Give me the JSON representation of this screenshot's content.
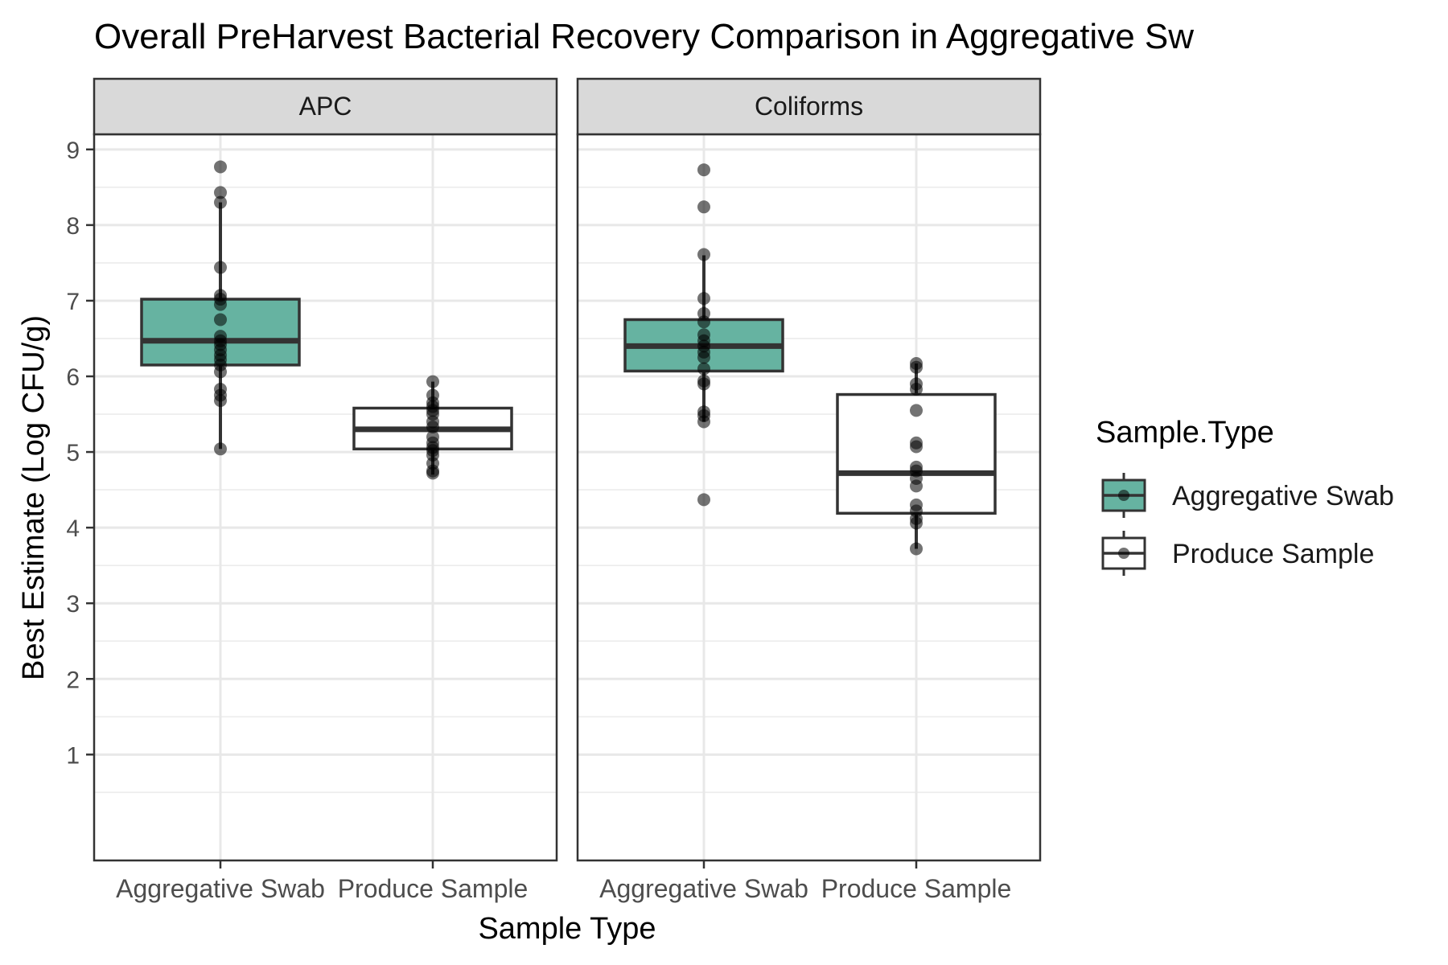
{
  "chart_data": {
    "type": "box",
    "title": "Overall PreHarvest Bacterial Recovery Comparison in Aggregative Sw",
    "xlabel": "Sample Type",
    "ylabel": "Best Estimate (Log CFU/g)",
    "ylim": [
      -0.4,
      9.2
    ],
    "yticks": [
      "1",
      "2",
      "3",
      "4",
      "5",
      "6",
      "7",
      "8",
      "9"
    ],
    "categories": [
      "Aggregative Swab",
      "Produce Sample"
    ],
    "grid": true,
    "legend": {
      "title": "Sample.Type",
      "position": "right",
      "entries": [
        {
          "label": "Aggregative Swab",
          "fill": "#66b3a1"
        },
        {
          "label": "Produce Sample",
          "fill": "#ffffff"
        }
      ]
    },
    "colors": {
      "Aggregative Swab": "#66b3a1",
      "Produce Sample": "#ffffff",
      "strip": "#d9d9d9"
    },
    "facets": [
      {
        "label": "APC",
        "groups": [
          {
            "category": "Aggregative Swab",
            "q1": 6.15,
            "median": 6.47,
            "q3": 7.02,
            "whisker_low": 5.04,
            "whisker_high": 8.3,
            "points": [
              8.77,
              8.43,
              8.3,
              7.44,
              7.07,
              7.02,
              6.95,
              6.75,
              6.53,
              6.47,
              6.42,
              6.35,
              6.28,
              6.22,
              6.15,
              6.06,
              5.83,
              5.75,
              5.68,
              5.04
            ]
          },
          {
            "category": "Produce Sample",
            "q1": 5.04,
            "median": 5.3,
            "q3": 5.58,
            "whisker_low": 4.7,
            "whisker_high": 5.93,
            "points": [
              5.93,
              5.75,
              5.65,
              5.6,
              5.55,
              5.5,
              5.4,
              5.33,
              5.2,
              5.12,
              5.06,
              5.02,
              4.96,
              4.85,
              4.75,
              4.72
            ]
          }
        ]
      },
      {
        "label": "Coliforms",
        "groups": [
          {
            "category": "Aggregative Swab",
            "q1": 6.07,
            "median": 6.4,
            "q3": 6.75,
            "whisker_low": 5.4,
            "whisker_high": 7.6,
            "points": [
              8.73,
              8.24,
              7.61,
              7.03,
              6.83,
              6.72,
              6.55,
              6.47,
              6.4,
              6.32,
              6.25,
              6.1,
              5.94,
              5.9,
              5.53,
              5.48,
              5.4,
              4.37
            ]
          },
          {
            "category": "Produce Sample",
            "q1": 4.19,
            "median": 4.72,
            "q3": 5.76,
            "whisker_low": 3.72,
            "whisker_high": 6.17,
            "points": [
              6.17,
              6.12,
              5.9,
              5.83,
              5.55,
              5.12,
              5.07,
              4.8,
              4.75,
              4.65,
              4.55,
              4.3,
              4.22,
              4.12,
              4.06,
              3.72
            ]
          }
        ]
      }
    ]
  }
}
